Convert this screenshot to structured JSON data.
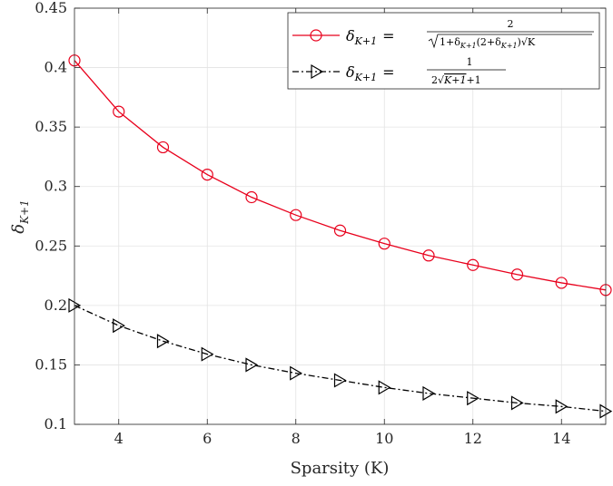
{
  "chart_data": {
    "type": "line",
    "xlabel": "Sparsity (K)",
    "ylabel": "δ_{K+1}",
    "xlim": [
      3,
      15
    ],
    "ylim": [
      0.1,
      0.45
    ],
    "xticks": [
      4,
      6,
      8,
      10,
      12,
      14
    ],
    "yticks": [
      0.1,
      0.15,
      0.2,
      0.25,
      0.3,
      0.35,
      0.4,
      0.45
    ],
    "grid": true,
    "legend_position": "top-right",
    "x": [
      3,
      4,
      5,
      6,
      7,
      8,
      9,
      10,
      11,
      12,
      13,
      14,
      15
    ],
    "series": [
      {
        "name": "δ_{K+1} = 2 / √(1+δ_{K+1}(2+δ_{K+1})√K)",
        "color": "#e8001c",
        "line_style": "solid",
        "marker": "circle",
        "values": [
          0.406,
          0.363,
          0.333,
          0.31,
          0.291,
          0.276,
          0.263,
          0.252,
          0.242,
          0.234,
          0.226,
          0.219,
          0.213
        ]
      },
      {
        "name": "δ_{K+1} = 1 / (2√(K+1)+1)",
        "color": "#000000",
        "line_style": "dashdot",
        "marker": "triangle-right",
        "values": [
          0.2,
          0.183,
          0.17,
          0.159,
          0.15,
          0.143,
          0.137,
          0.131,
          0.126,
          0.122,
          0.118,
          0.115,
          0.111
        ]
      }
    ]
  },
  "legend": {
    "entry1": {
      "lhs_main": "δ",
      "lhs_sub": "K+1",
      "eq": "=",
      "numerator": "2",
      "den_root_a": "1+δ",
      "den_sub": "K+1",
      "den_root_b": "(2+δ",
      "den_sub2": "K+1",
      "den_root_c": ")√K"
    },
    "entry2": {
      "lhs_main": "δ",
      "lhs_sub": "K+1",
      "eq": "=",
      "numerator": "1",
      "den_a": "2√",
      "den_b": "K+1",
      "den_c": "+1"
    }
  },
  "axis_titles": {
    "x": "Sparsity (K)",
    "y_main": "δ",
    "y_sub": "K+1"
  }
}
